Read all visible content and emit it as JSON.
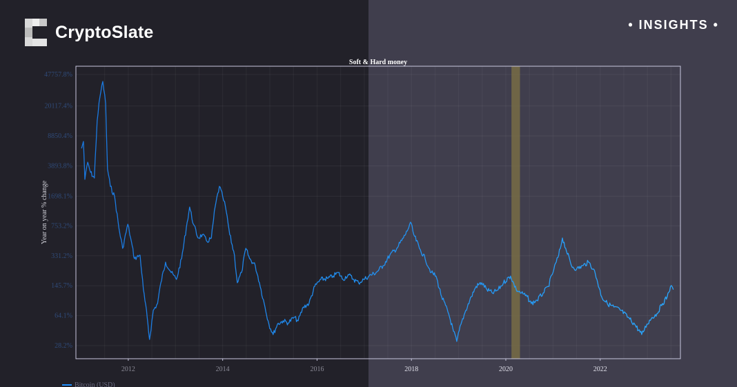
{
  "brand": {
    "name": "CryptoSlate",
    "badge": "• INSIGHTS •"
  },
  "colors": {
    "line": "#1e8fff",
    "highlight": "#7a6f45",
    "bg_left": "#222129",
    "bg_right": "#403e4d"
  },
  "chart_data": {
    "type": "line",
    "title": "Soft & Hard money",
    "xlabel": "",
    "ylabel": "Year on year % change",
    "y_scale": "log",
    "grid": true,
    "legend": {
      "position": "bottom-left",
      "entries": [
        "Bitcoin (USD)"
      ]
    },
    "xlim": [
      2010.89,
      2023.7
    ],
    "ylim": [
      19.7,
      59800
    ],
    "x_ticks": [
      2012,
      2014,
      2016,
      2018,
      2020,
      2022
    ],
    "x_tick_labels": [
      "2012",
      "2014",
      "2016",
      "2018",
      "2020",
      "2022"
    ],
    "y_ticks": [
      47757.8,
      20117.4,
      8850.4,
      3893.8,
      1698.1,
      753.2,
      331.2,
      145.7,
      64.1,
      28.2
    ],
    "y_tick_labels": [
      "47757.8%",
      "20117.4%",
      "8850.4%",
      "3893.8%",
      "1698.1%",
      "753.2%",
      "331.2%",
      "145.7%",
      "64.1%",
      "28.2%"
    ],
    "highlight_band": {
      "x": [
        2020.12,
        2020.3
      ]
    },
    "series": [
      {
        "name": "Bitcoin (USD)",
        "x": [
          2011.01,
          2011.05,
          2011.08,
          2011.14,
          2011.2,
          2011.28,
          2011.34,
          2011.4,
          2011.46,
          2011.52,
          2011.56,
          2011.62,
          2011.71,
          2011.8,
          2011.88,
          2011.99,
          2012.05,
          2012.13,
          2012.25,
          2012.32,
          2012.4,
          2012.45,
          2012.53,
          2012.62,
          2012.69,
          2012.79,
          2012.91,
          2013.02,
          2013.13,
          2013.23,
          2013.3,
          2013.38,
          2013.48,
          2013.57,
          2013.67,
          2013.76,
          2013.84,
          2013.93,
          2014.0,
          2014.06,
          2014.15,
          2014.25,
          2014.31,
          2014.4,
          2014.49,
          2014.57,
          2014.69,
          2014.78,
          2014.88,
          2014.98,
          2015.07,
          2015.16,
          2015.28,
          2015.39,
          2015.51,
          2015.6,
          2015.71,
          2015.83,
          2015.95,
          2016.08,
          2016.23,
          2016.34,
          2016.45,
          2016.55,
          2016.66,
          2016.78,
          2016.88,
          2016.99,
          2017.1,
          2017.25,
          2017.4,
          2017.54,
          2017.69,
          2017.83,
          2017.91,
          2017.98,
          2018.05,
          2018.17,
          2018.29,
          2018.42,
          2018.52,
          2018.64,
          2018.79,
          2018.89,
          2018.96,
          2019.05,
          2019.15,
          2019.27,
          2019.37,
          2019.49,
          2019.6,
          2019.72,
          2019.84,
          2019.95,
          2020.1,
          2020.22,
          2020.33,
          2020.45,
          2020.54,
          2020.66,
          2020.79,
          2020.9,
          2021.02,
          2021.12,
          2021.2,
          2021.27,
          2021.39,
          2021.5,
          2021.64,
          2021.75,
          2021.86,
          2021.93,
          2022.03,
          2022.15,
          2022.29,
          2022.44,
          2022.59,
          2022.73,
          2022.88,
          2022.99,
          2023.1,
          2023.2,
          2023.32,
          2023.42,
          2023.49,
          2023.55
        ],
        "values": [
          6290,
          7600,
          2690,
          4310,
          3250,
          2790,
          13400,
          26000,
          39400,
          21500,
          3570,
          2220,
          1680,
          716,
          406,
          786,
          539,
          306,
          336,
          131,
          61.2,
          33.4,
          74.0,
          89.4,
          158,
          278,
          209,
          173,
          306,
          716,
          1260,
          786,
          539,
          592,
          490,
          539,
          1260,
          2220,
          1680,
          1260,
          592,
          336,
          158,
          209,
          406,
          306,
          253,
          158,
          89.4,
          50.7,
          38.2,
          50.7,
          55.7,
          52.6,
          61.2,
          55.7,
          81.3,
          89.4,
          143,
          173,
          178,
          190,
          209,
          173,
          198,
          173,
          158,
          173,
          190,
          209,
          253,
          336,
          406,
          539,
          651,
          832,
          592,
          406,
          306,
          209,
          190,
          108,
          67.3,
          41.9,
          31.6,
          50.7,
          74.0,
          108,
          143,
          158,
          131,
          119,
          131,
          158,
          190,
          131,
          119,
          108,
          89.4,
          98,
          119,
          143,
          230,
          336,
          539,
          406,
          253,
          230,
          253,
          278,
          230,
          173,
          108,
          89.4,
          81.3,
          74.0,
          61.2,
          50.7,
          38.2,
          50.7,
          61.2,
          67.3,
          89.4,
          108,
          143,
          131
        ]
      }
    ]
  }
}
